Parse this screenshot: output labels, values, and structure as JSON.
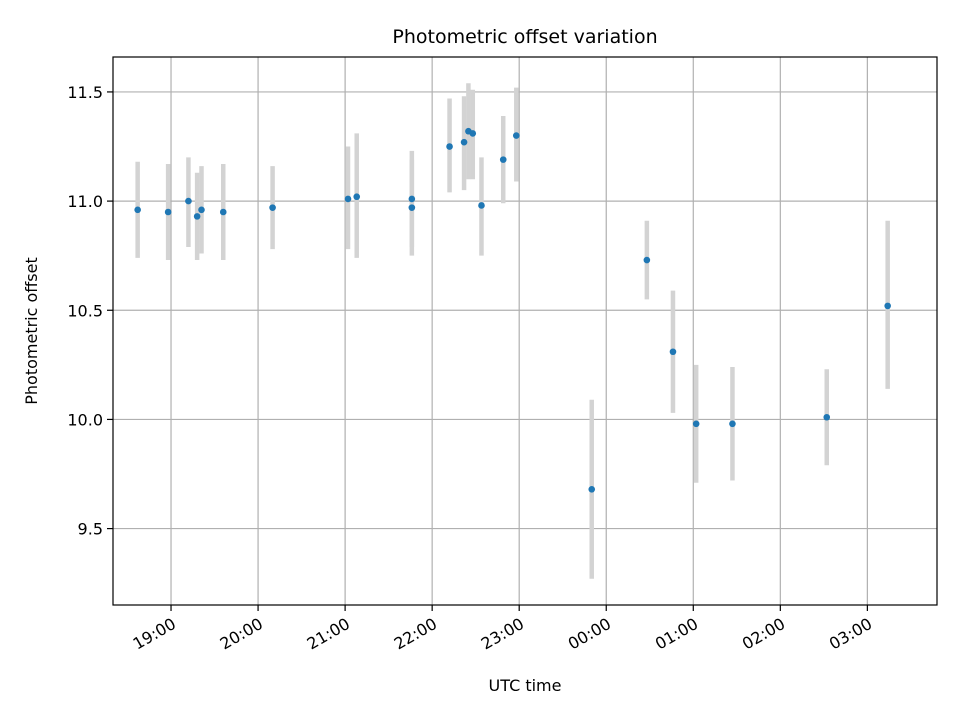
{
  "chart_data": {
    "type": "scatter",
    "title": "Photometric offset variation",
    "xlabel": "UTC time",
    "ylabel": "Photometric offset",
    "xlim": [
      "18:20",
      "27:48"
    ],
    "ylim": [
      9.15,
      11.66
    ],
    "x_ticks": [
      "19:00",
      "20:00",
      "21:00",
      "22:00",
      "23:00",
      "00:00",
      "01:00",
      "02:00",
      "03:00"
    ],
    "x_tick_values": [
      "19:00",
      "20:00",
      "21:00",
      "22:00",
      "23:00",
      "24:00",
      "25:00",
      "26:00",
      "27:00"
    ],
    "y_ticks": [
      9.5,
      10.0,
      10.5,
      11.0,
      11.5
    ],
    "y_tick_labels": [
      "9.5",
      "10.0",
      "10.5",
      "11.0",
      "11.5"
    ],
    "grid": true,
    "colors": {
      "point": "#1f77b4",
      "errorbar": "#d3d3d3",
      "grid": "#b0b0b0"
    },
    "points": [
      {
        "x": "18:37",
        "y": 10.96,
        "ylo": 10.74,
        "yhi": 11.18
      },
      {
        "x": "18:58",
        "y": 10.95,
        "ylo": 10.73,
        "yhi": 11.17
      },
      {
        "x": "19:12",
        "y": 11.0,
        "ylo": 10.79,
        "yhi": 11.2
      },
      {
        "x": "19:18",
        "y": 10.93,
        "ylo": 10.73,
        "yhi": 11.13
      },
      {
        "x": "19:21",
        "y": 10.96,
        "ylo": 10.76,
        "yhi": 11.16
      },
      {
        "x": "19:36",
        "y": 10.95,
        "ylo": 10.73,
        "yhi": 11.17
      },
      {
        "x": "20:10",
        "y": 10.97,
        "ylo": 10.78,
        "yhi": 11.16
      },
      {
        "x": "21:02",
        "y": 11.01,
        "ylo": 10.78,
        "yhi": 11.25
      },
      {
        "x": "21:08",
        "y": 11.02,
        "ylo": 10.74,
        "yhi": 11.31
      },
      {
        "x": "21:46",
        "y": 11.01,
        "ylo": 10.79,
        "yhi": 11.23
      },
      {
        "x": "21:46",
        "y": 10.97,
        "ylo": 10.75,
        "yhi": 11.19
      },
      {
        "x": "22:12",
        "y": 11.25,
        "ylo": 11.04,
        "yhi": 11.47
      },
      {
        "x": "22:22",
        "y": 11.27,
        "ylo": 11.05,
        "yhi": 11.48
      },
      {
        "x": "22:25",
        "y": 11.32,
        "ylo": 11.1,
        "yhi": 11.54
      },
      {
        "x": "22:28",
        "y": 11.31,
        "ylo": 11.1,
        "yhi": 11.51
      },
      {
        "x": "22:34",
        "y": 10.98,
        "ylo": 10.75,
        "yhi": 11.2
      },
      {
        "x": "22:49",
        "y": 11.19,
        "ylo": 10.99,
        "yhi": 11.39
      },
      {
        "x": "22:58",
        "y": 11.3,
        "ylo": 11.09,
        "yhi": 11.52
      },
      {
        "x": "23:50",
        "y": 9.68,
        "ylo": 9.27,
        "yhi": 10.09
      },
      {
        "x": "24:28",
        "y": 10.73,
        "ylo": 10.55,
        "yhi": 10.91
      },
      {
        "x": "24:46",
        "y": 10.31,
        "ylo": 10.03,
        "yhi": 10.59
      },
      {
        "x": "25:02",
        "y": 9.98,
        "ylo": 9.71,
        "yhi": 10.25
      },
      {
        "x": "25:27",
        "y": 9.98,
        "ylo": 9.72,
        "yhi": 10.24
      },
      {
        "x": "26:32",
        "y": 10.01,
        "ylo": 9.79,
        "yhi": 10.23
      },
      {
        "x": "27:14",
        "y": 10.52,
        "ylo": 10.14,
        "yhi": 10.91
      }
    ]
  }
}
